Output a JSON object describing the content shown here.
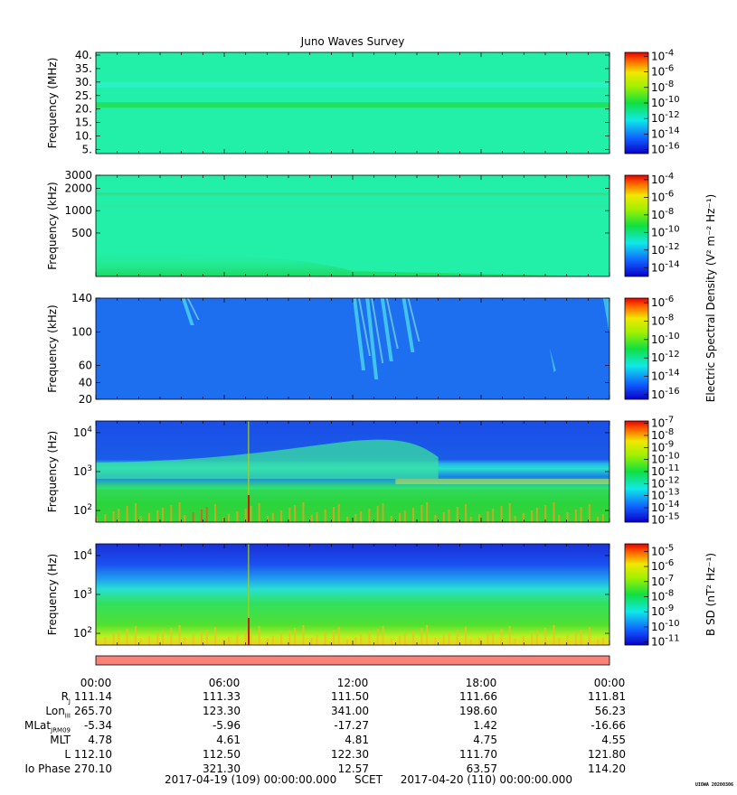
{
  "title": "Juno Waves Survey",
  "stamp": "UIOWA 20200306",
  "colors": {
    "bar": "#f88178",
    "frame": "#000000"
  },
  "chart_data": [
    {
      "type": "heatmap",
      "name": "panel1",
      "ylabel": "Frequency (MHz)",
      "yscale": "linear",
      "ylim": [
        3.5,
        41
      ],
      "yticks": [
        {
          "v": 5,
          "label": "5."
        },
        {
          "v": 10,
          "label": "10."
        },
        {
          "v": 15,
          "label": "15."
        },
        {
          "v": 20,
          "label": "20."
        },
        {
          "v": 25,
          "label": "25."
        },
        {
          "v": 30,
          "label": "30."
        },
        {
          "v": 35,
          "label": "35."
        },
        {
          "v": 40,
          "label": "40."
        }
      ],
      "colorbar": {
        "type": "log",
        "exponents": [
          -4,
          -6,
          -8,
          -10,
          -12,
          -14,
          -16
        ],
        "range": [
          -16.5,
          -3.5
        ]
      },
      "background": "#22f0a8",
      "features": [
        {
          "kind": "band",
          "ylow": 20.5,
          "yhigh": 22.5,
          "color": "#22e060"
        },
        {
          "kind": "band",
          "ylow": 28,
          "yhigh": 30,
          "color": "#2af0c4"
        }
      ]
    },
    {
      "type": "heatmap",
      "name": "panel2",
      "ylabel": "Frequency (kHz)",
      "yscale": "log",
      "ylim": [
        130,
        3000
      ],
      "yticks": [
        {
          "v": 500,
          "label": "500"
        },
        {
          "v": 1000,
          "label": "1000"
        },
        {
          "v": 2000,
          "label": "2000"
        },
        {
          "v": 3000,
          "label": "3000"
        }
      ],
      "colorbar": {
        "type": "log",
        "exponents": [
          -4,
          -6,
          -8,
          -10,
          -12,
          -14
        ],
        "range": [
          -15,
          -3.5
        ]
      },
      "colorbar_label": "Electric Spectral Density (V² m⁻² Hz⁻¹)",
      "background": "#22f0a8",
      "features": [
        {
          "kind": "band",
          "ylow": 1600,
          "yhigh": 1750,
          "color": "#30e090"
        },
        {
          "kind": "band",
          "ylow": 1100,
          "yhigh": 1200,
          "color": "#30e8a0"
        },
        {
          "kind": "lowfill",
          "color": "#28e070"
        }
      ]
    },
    {
      "type": "heatmap",
      "name": "panel3",
      "ylabel": "Frequency (kHz)",
      "yscale": "linear",
      "ylim": [
        20,
        140
      ],
      "yticks": [
        {
          "v": 20,
          "label": "20"
        },
        {
          "v": 40,
          "label": "40"
        },
        {
          "v": 60,
          "label": "60"
        },
        {
          "v": 100,
          "label": "100"
        },
        {
          "v": 140,
          "label": "140"
        }
      ],
      "colorbar": {
        "type": "log",
        "exponents": [
          -6,
          -8,
          -10,
          -12,
          -14,
          -16
        ],
        "range": [
          -16.5,
          -5.5
        ]
      },
      "background": "#1e6ef0",
      "features": [
        {
          "kind": "streaks",
          "hours": [
            4.0,
            12.0,
            12.6,
            13.3,
            14.3
          ],
          "color": "#4ad8f0"
        }
      ]
    },
    {
      "type": "heatmap",
      "name": "panel4",
      "ylabel": "Frequency (Hz)",
      "yscale": "log",
      "ylim": [
        50,
        20000
      ],
      "yticks": [
        {
          "v": 100,
          "base": "10",
          "exp": "2"
        },
        {
          "v": 1000,
          "base": "10",
          "exp": "3"
        },
        {
          "v": 10000,
          "base": "10",
          "exp": "4"
        }
      ],
      "colorbar": {
        "type": "log",
        "exponents": [
          -7,
          -8,
          -9,
          -10,
          -11,
          -12,
          -13,
          -14,
          -15
        ],
        "range": [
          -15.2,
          -6.8
        ]
      },
      "background": "#1a5ce8",
      "features": [
        {
          "kind": "cyanband",
          "color": "#26d8d8"
        },
        {
          "kind": "greenlow",
          "color": "#30d040"
        },
        {
          "kind": "hot",
          "color": "#f0a020"
        }
      ]
    },
    {
      "type": "heatmap",
      "name": "panel5",
      "ylabel": "Frequency (Hz)",
      "yscale": "log",
      "ylim": [
        50,
        20000
      ],
      "yticks": [
        {
          "v": 100,
          "base": "10",
          "exp": "2"
        },
        {
          "v": 1000,
          "base": "10",
          "exp": "3"
        },
        {
          "v": 10000,
          "base": "10",
          "exp": "4"
        }
      ],
      "colorbar": {
        "type": "log",
        "exponents": [
          -5,
          -6,
          -7,
          -8,
          -9,
          -10,
          -11
        ],
        "range": [
          -11.2,
          -4.5
        ]
      },
      "colorbar_label": "B SD (nT² Hz⁻¹)",
      "background": "#1a40e0",
      "features": [
        {
          "kind": "gradient",
          "color": "#30d050"
        },
        {
          "kind": "hot",
          "color": "#f0c020"
        }
      ]
    }
  ],
  "xaxis": {
    "range_hours": [
      0,
      24
    ],
    "tick_labels": [
      "00:00",
      "06:00",
      "12:00",
      "18:00",
      "00:00"
    ]
  },
  "ephemeris": {
    "rows": [
      {
        "label": "R",
        "sub": "J",
        "values": [
          "111.14",
          "111.33",
          "111.50",
          "111.66",
          "111.81"
        ]
      },
      {
        "label": "Lon",
        "sub": "III",
        "values": [
          "265.70",
          "123.30",
          "341.00",
          "198.60",
          "56.23"
        ]
      },
      {
        "label": "MLat",
        "sub": "JRM09",
        "values": [
          "-5.34",
          "-5.96",
          "-17.27",
          "1.42",
          "-16.66"
        ]
      },
      {
        "label": "MLT",
        "sub": "",
        "values": [
          "4.78",
          "4.61",
          "4.81",
          "4.75",
          "4.55"
        ]
      },
      {
        "label": "L",
        "sub": "",
        "values": [
          "112.10",
          "112.50",
          "122.30",
          "111.70",
          "121.80"
        ]
      },
      {
        "label": "Io Phase",
        "sub": "",
        "values": [
          "270.10",
          "321.30",
          "12.57",
          "63.57",
          "114.20"
        ]
      }
    ]
  },
  "footer": {
    "start": "2017-04-19 (109) 00:00:00.000",
    "mid": "SCET",
    "end": "2017-04-20 (110) 00:00:00.000"
  }
}
